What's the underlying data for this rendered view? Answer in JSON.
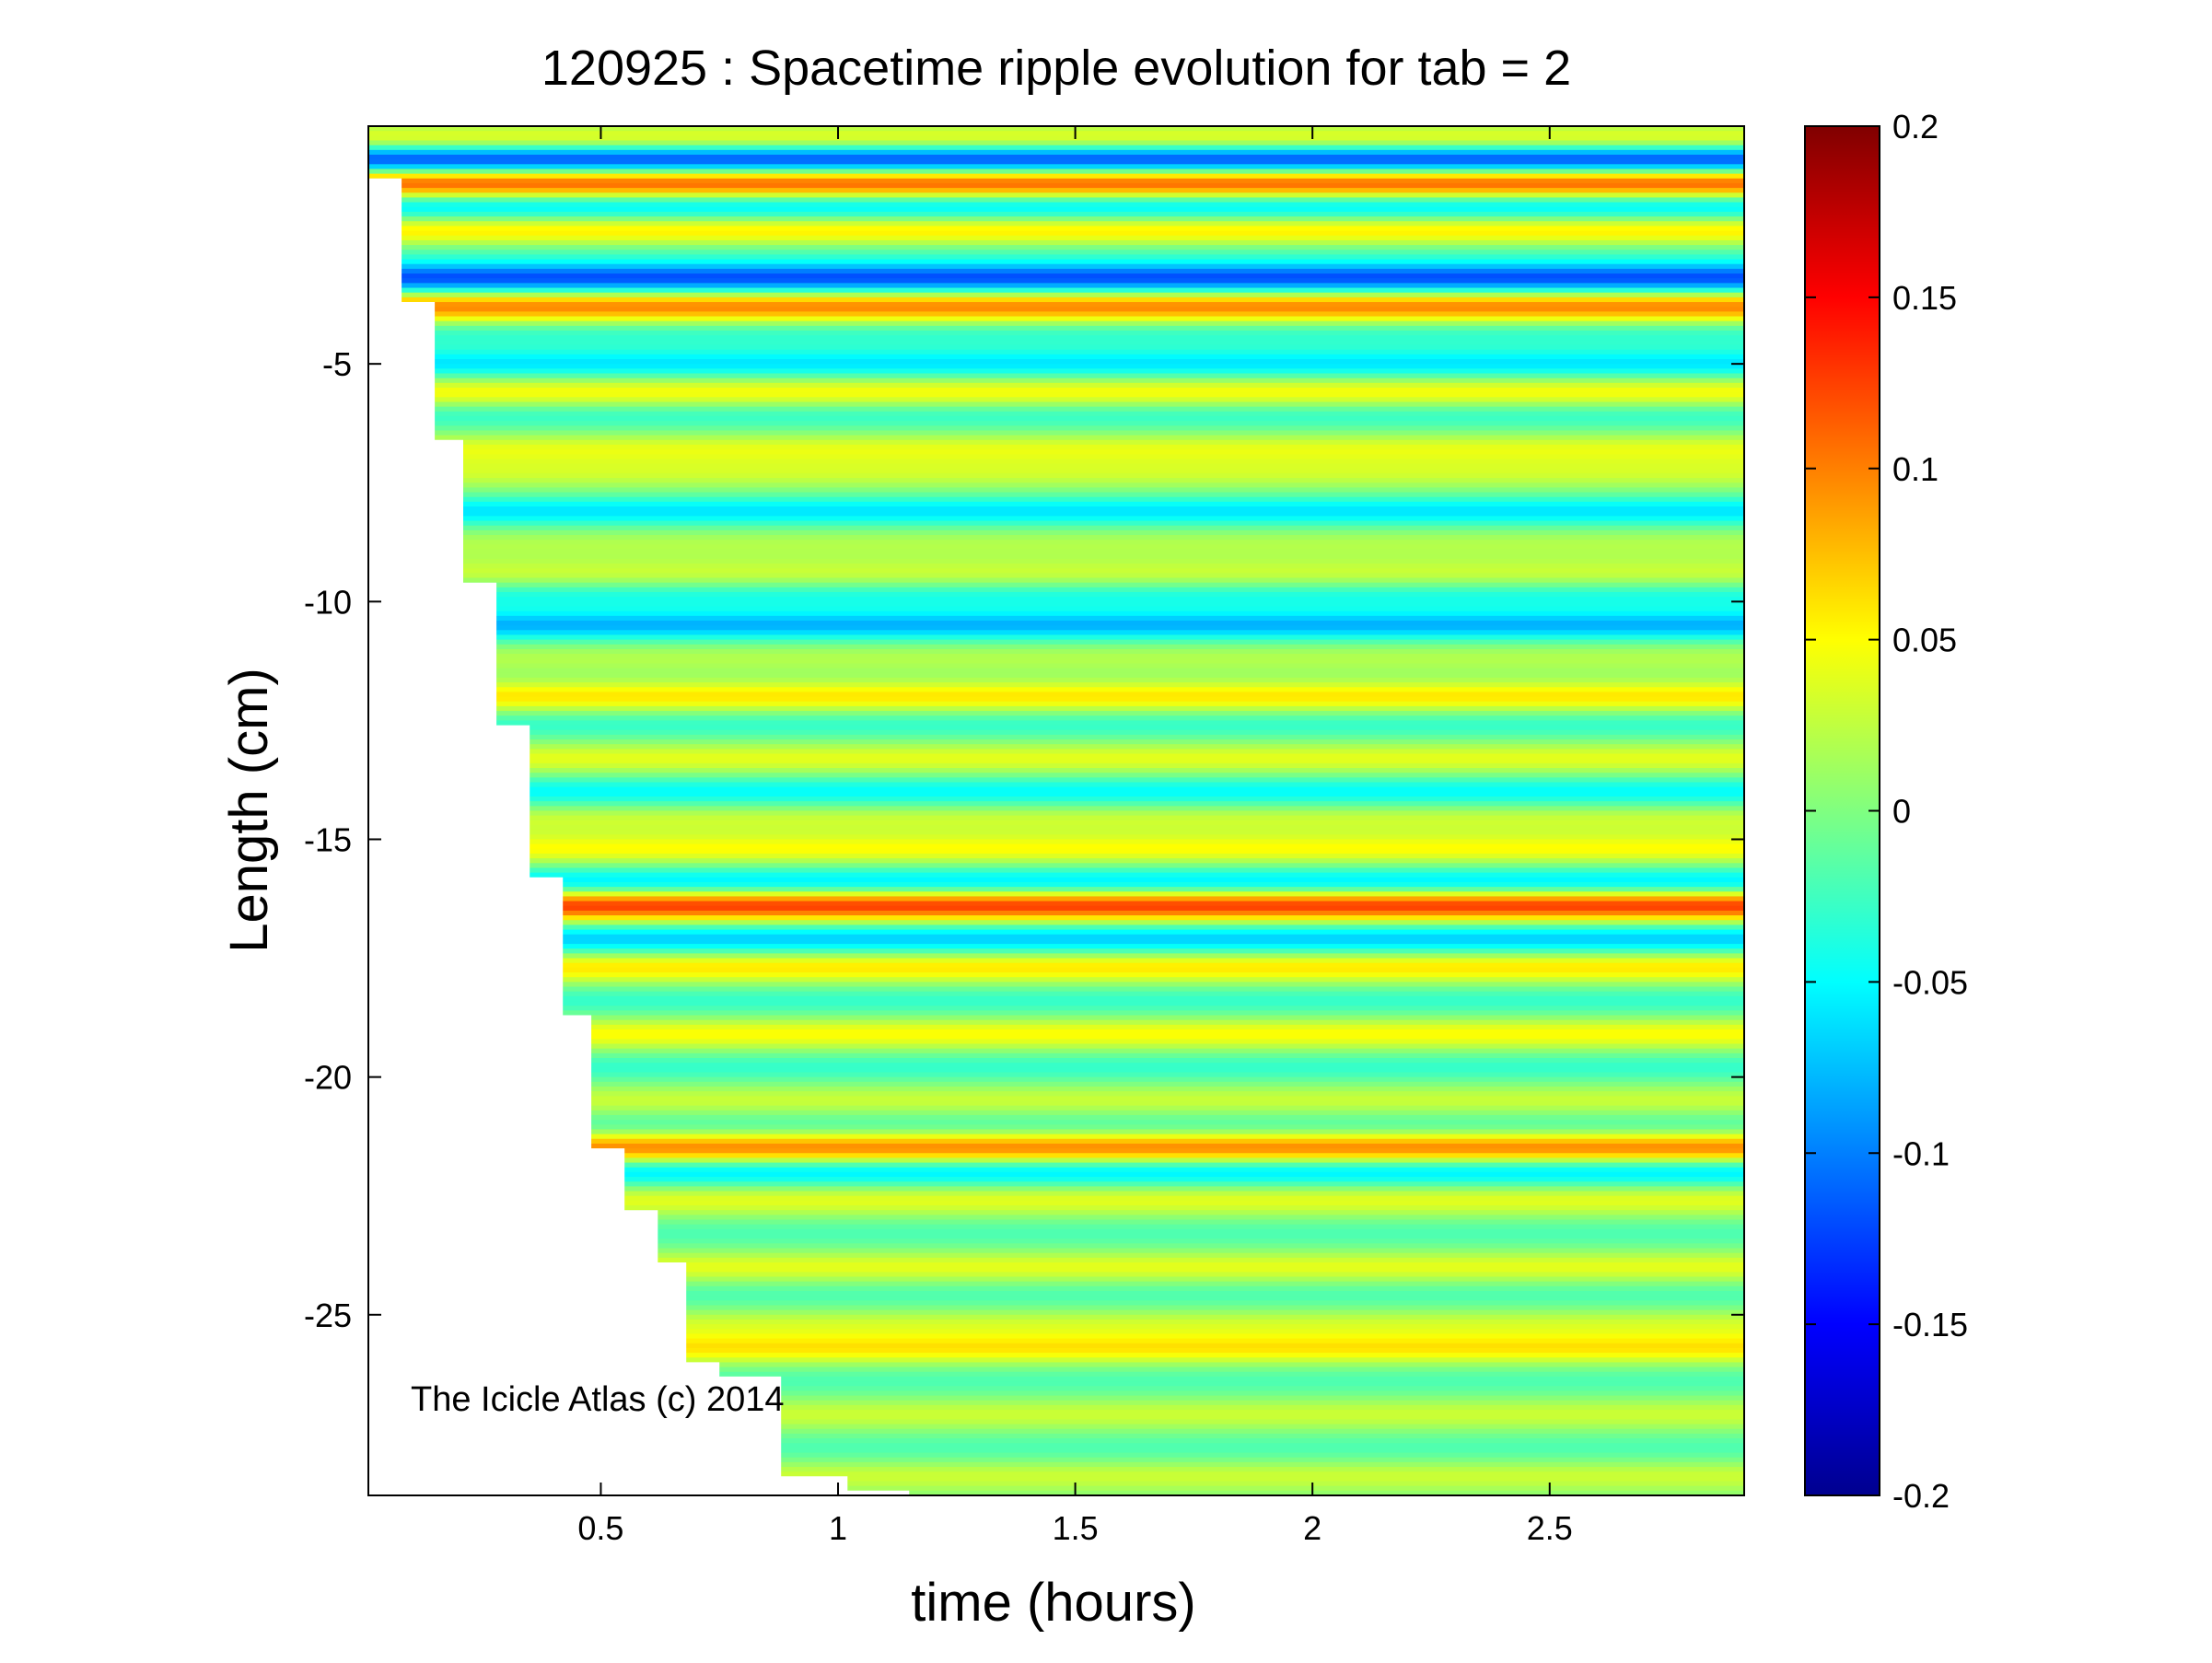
{
  "chart_data": {
    "type": "heatmap",
    "title": "120925 : Spacetime ripple evolution for tab = 2",
    "xlabel": "time (hours)",
    "ylabel": "Length (cm)",
    "xlim": [
      0.01,
      2.91
    ],
    "ylim": [
      -28.8,
      0
    ],
    "x_ticks": [
      0.5,
      1,
      1.5,
      2,
      2.5
    ],
    "x_tick_labels": [
      "0.5",
      "1",
      "1.5",
      "2",
      "2.5"
    ],
    "y_ticks": [
      -5,
      -10,
      -15,
      -20,
      -25
    ],
    "y_tick_labels": [
      "-5",
      "-10",
      "-15",
      "-20",
      "-25"
    ],
    "colorbar": {
      "colormap": "jet",
      "range": [
        -0.2,
        0.2
      ],
      "ticks": [
        0.2,
        0.15,
        0.1,
        0.05,
        0,
        -0.05,
        -0.1,
        -0.15,
        -0.2
      ],
      "tick_labels": [
        "0.2",
        "0.15",
        "0.1",
        "0.05",
        "0",
        "-0.05",
        "-0.1",
        "-0.15",
        "-0.2"
      ]
    },
    "data_boundary": {
      "description_of_values": "icicle tip position over time (hours, cm)",
      "t": [
        0.01,
        0.08,
        0.08,
        0.15,
        0.15,
        0.21,
        0.21,
        0.28,
        0.28,
        0.35,
        0.35,
        0.42,
        0.42,
        0.48,
        0.48,
        0.55,
        0.55,
        0.62,
        0.62,
        0.68,
        0.68,
        0.75,
        0.75,
        0.88,
        0.88,
        1.02,
        1.02,
        1.15,
        1.15
      ],
      "length": [
        -1.1,
        -1.1,
        -3.7,
        -3.7,
        -6.6,
        -6.6,
        -9.6,
        -9.6,
        -12.6,
        -12.6,
        -15.8,
        -15.8,
        -18.7,
        -18.7,
        -21.5,
        -21.5,
        -22.8,
        -22.8,
        -23.9,
        -23.9,
        -26.0,
        -26.0,
        -26.3,
        -26.3,
        -28.4,
        -28.4,
        -28.7,
        -28.7,
        -28.8
      ]
    },
    "ripple_bands": [
      {
        "length": -0.3,
        "amplitude": 0.05
      },
      {
        "length": -0.7,
        "amplitude": -0.13
      },
      {
        "length": -1.2,
        "amplitude": 0.12
      },
      {
        "length": -1.7,
        "amplitude": -0.06
      },
      {
        "length": -2.2,
        "amplitude": 0.06
      },
      {
        "length": -2.7,
        "amplitude": -0.02
      },
      {
        "length": -3.2,
        "amplitude": -0.12
      },
      {
        "length": -3.8,
        "amplitude": 0.1
      },
      {
        "length": -4.4,
        "amplitude": -0.03
      },
      {
        "length": -5.0,
        "amplitude": -0.06
      },
      {
        "length": -5.6,
        "amplitude": 0.05
      },
      {
        "length": -6.1,
        "amplitude": -0.03
      },
      {
        "length": -6.8,
        "amplitude": 0.04
      },
      {
        "length": -7.3,
        "amplitude": 0.03
      },
      {
        "length": -8.1,
        "amplitude": -0.06
      },
      {
        "length": -8.8,
        "amplitude": 0.02
      },
      {
        "length": -9.4,
        "amplitude": 0.03
      },
      {
        "length": -9.9,
        "amplitude": -0.04
      },
      {
        "length": -10.5,
        "amplitude": -0.08
      },
      {
        "length": -11.2,
        "amplitude": 0.02
      },
      {
        "length": -12.0,
        "amplitude": 0.06
      },
      {
        "length": -12.6,
        "amplitude": -0.03
      },
      {
        "length": -13.3,
        "amplitude": 0.04
      },
      {
        "length": -14.0,
        "amplitude": -0.05
      },
      {
        "length": -14.6,
        "amplitude": 0.03
      },
      {
        "length": -15.2,
        "amplitude": 0.05
      },
      {
        "length": -15.9,
        "amplitude": -0.06
      },
      {
        "length": -16.4,
        "amplitude": 0.13
      },
      {
        "length": -17.1,
        "amplitude": -0.07
      },
      {
        "length": -17.7,
        "amplitude": 0.06
      },
      {
        "length": -18.4,
        "amplitude": -0.03
      },
      {
        "length": -19.1,
        "amplitude": 0.05
      },
      {
        "length": -19.8,
        "amplitude": -0.03
      },
      {
        "length": -20.5,
        "amplitude": 0.03
      },
      {
        "length": -21.0,
        "amplitude": -0.02
      },
      {
        "length": -21.5,
        "amplitude": 0.1
      },
      {
        "length": -22.0,
        "amplitude": -0.06
      },
      {
        "length": -22.6,
        "amplitude": 0.04
      },
      {
        "length": -23.3,
        "amplitude": -0.02
      },
      {
        "length": -24.0,
        "amplitude": 0.04
      },
      {
        "length": -24.6,
        "amplitude": -0.02
      },
      {
        "length": -25.2,
        "amplitude": 0.03
      },
      {
        "length": -25.7,
        "amplitude": 0.06
      },
      {
        "length": -26.4,
        "amplitude": -0.02
      },
      {
        "length": -27.1,
        "amplitude": 0.03
      },
      {
        "length": -27.8,
        "amplitude": -0.02
      },
      {
        "length": -28.4,
        "amplitude": 0.03
      }
    ]
  },
  "watermark": "The Icicle Atlas (c) 2014"
}
